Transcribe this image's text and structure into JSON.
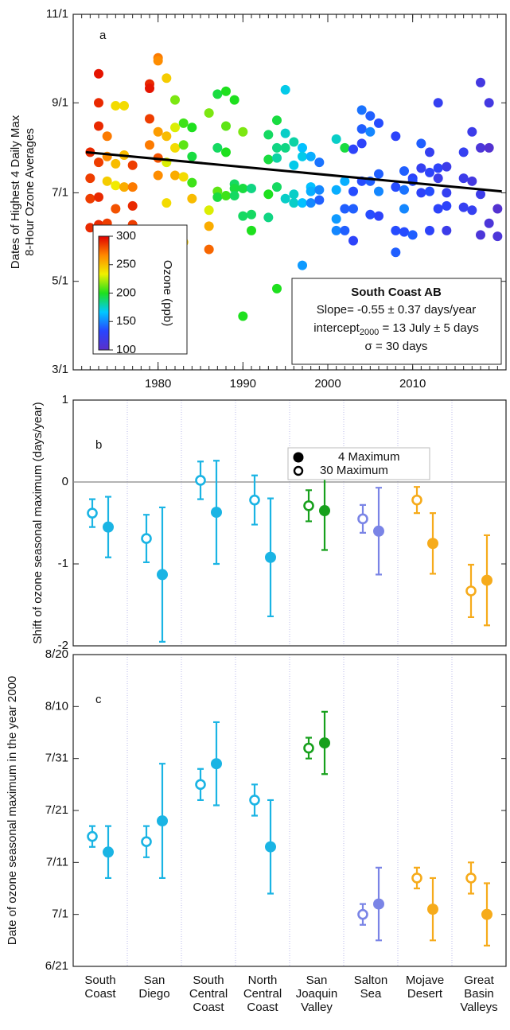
{
  "chart_data": [
    {
      "type": "scatter",
      "label": "a",
      "ylabel": [
        "Dates of Highest 4 Daily Max",
        "8-Hour Ozone Averages"
      ],
      "xlim": [
        1970,
        2021
      ],
      "xticks": [
        1980,
        1990,
        2000,
        2010
      ],
      "ylim": [
        60,
        305
      ],
      "yticks": [
        {
          "value": 60,
          "label": "3/1"
        },
        {
          "value": 121,
          "label": "5/1"
        },
        {
          "value": 182,
          "label": "7/1"
        },
        {
          "value": 244,
          "label": "9/1"
        },
        {
          "value": 305,
          "label": "11/1"
        }
      ],
      "x": [
        1972,
        1972,
        1972,
        1972,
        1973,
        1973,
        1973,
        1973,
        1973,
        1973,
        1974,
        1974,
        1974,
        1974,
        1975,
        1975,
        1975,
        1975,
        1976,
        1976,
        1976,
        1976,
        1977,
        1977,
        1977,
        1977,
        1979,
        1979,
        1979,
        1979,
        1980,
        1980,
        1980,
        1980,
        1980,
        1981,
        1981,
        1981,
        1981,
        1982,
        1982,
        1982,
        1982,
        1983,
        1983,
        1983,
        1983,
        1984,
        1984,
        1984,
        1984,
        1986,
        1986,
        1986,
        1986,
        1987,
        1987,
        1987,
        1987,
        1988,
        1988,
        1988,
        1988,
        1989,
        1989,
        1989,
        1989,
        1990,
        1990,
        1990,
        1990,
        1991,
        1991,
        1991,
        1993,
        1993,
        1993,
        1993,
        1994,
        1994,
        1994,
        1994,
        1994,
        1995,
        1995,
        1995,
        1995,
        1996,
        1996,
        1996,
        1996,
        1997,
        1997,
        1997,
        1997,
        1998,
        1998,
        1998,
        1998,
        1999,
        1999,
        1999,
        2001,
        2001,
        2001,
        2001,
        2002,
        2002,
        2002,
        2002,
        2003,
        2003,
        2003,
        2003,
        2004,
        2004,
        2004,
        2004,
        2005,
        2005,
        2005,
        2005,
        2006,
        2006,
        2006,
        2006,
        2008,
        2008,
        2008,
        2008,
        2009,
        2009,
        2009,
        2009,
        2010,
        2010,
        2010,
        2011,
        2011,
        2011,
        2012,
        2012,
        2012,
        2012,
        2013,
        2013,
        2013,
        2013,
        2014,
        2014,
        2014,
        2014,
        2016,
        2016,
        2016,
        2017,
        2017,
        2017,
        2018,
        2018,
        2018,
        2018,
        2019,
        2019,
        2019,
        2020,
        2020
      ],
      "values": [
        210,
        192,
        178,
        158,
        264,
        244,
        228,
        203,
        179,
        160,
        221,
        207,
        190,
        161,
        242,
        202,
        187,
        171,
        242,
        208,
        186,
        155,
        201,
        186,
        173,
        160,
        257,
        254,
        233,
        215,
        275,
        273,
        224,
        206,
        194,
        261,
        221,
        203,
        175,
        246,
        227,
        213,
        194,
        230,
        215,
        193,
        148,
        227,
        207,
        189,
        178,
        237,
        170,
        159,
        143,
        250,
        213,
        183,
        179,
        252,
        228,
        210,
        180,
        246,
        188,
        185,
        180,
        224,
        185,
        166,
        97,
        185,
        167,
        156,
        222,
        205,
        181,
        165,
        232,
        213,
        206,
        186,
        116,
        253,
        223,
        213,
        178,
        217,
        201,
        181,
        175,
        213,
        207,
        175,
        132,
        207,
        186,
        183,
        175,
        203,
        184,
        177,
        219,
        184,
        164,
        156,
        213,
        190,
        171,
        156,
        212,
        183,
        171,
        149,
        239,
        226,
        216,
        190,
        235,
        224,
        190,
        167,
        230,
        195,
        183,
        166,
        221,
        186,
        156,
        141,
        197,
        184,
        171,
        155,
        192,
        190,
        153,
        216,
        199,
        182,
        210,
        196,
        183,
        156,
        244,
        199,
        192,
        171,
        200,
        182,
        173,
        156,
        210,
        192,
        172,
        224,
        190,
        170,
        258,
        213,
        181,
        153,
        244,
        213,
        161,
        171,
        152
      ],
      "ozone": [
        290,
        285,
        285,
        290,
        295,
        290,
        290,
        285,
        290,
        290,
        270,
        265,
        245,
        285,
        240,
        250,
        235,
        280,
        240,
        250,
        255,
        265,
        285,
        270,
        290,
        285,
        290,
        295,
        285,
        270,
        270,
        265,
        260,
        280,
        265,
        245,
        250,
        230,
        240,
        215,
        230,
        240,
        255,
        205,
        210,
        240,
        245,
        200,
        195,
        205,
        250,
        215,
        230,
        255,
        275,
        195,
        190,
        210,
        195,
        200,
        210,
        200,
        205,
        200,
        190,
        195,
        190,
        215,
        195,
        190,
        200,
        185,
        190,
        200,
        190,
        195,
        200,
        185,
        195,
        185,
        180,
        190,
        200,
        170,
        175,
        185,
        175,
        180,
        170,
        175,
        175,
        165,
        170,
        165,
        155,
        160,
        165,
        160,
        150,
        145,
        150,
        140,
        175,
        160,
        155,
        150,
        195,
        160,
        140,
        140,
        130,
        135,
        140,
        130,
        145,
        140,
        130,
        135,
        140,
        150,
        140,
        135,
        135,
        140,
        150,
        130,
        130,
        135,
        135,
        140,
        140,
        145,
        150,
        135,
        130,
        135,
        140,
        140,
        125,
        130,
        125,
        130,
        135,
        130,
        125,
        130,
        120,
        130,
        120,
        125,
        130,
        120,
        125,
        120,
        125,
        120,
        115,
        125,
        115,
        110,
        120,
        110,
        115,
        105,
        110,
        105,
        110
      ],
      "trend_line": {
        "x": [
          1971.5,
          2020.5
        ],
        "values": [
          210,
          183
        ],
        "color": "#000000"
      },
      "colormap": [
        "#5b2fc8",
        "#2845ff",
        "#00c8ff",
        "#1ee01e",
        "#f0f000",
        "#ff8800",
        "#e00000"
      ],
      "colorbar": {
        "label": "Ozone (ppb)",
        "clim": [
          100,
          300
        ],
        "ticks": [
          100,
          150,
          200,
          250,
          300
        ]
      },
      "annotation": {
        "title": "South Coast AB",
        "slope": "Slope= -0.55 ± 0.37 days/year",
        "intercept": [
          "intercept",
          "2000",
          " = 13 July ± 5 days"
        ],
        "sigma": "σ = 30 days"
      }
    },
    {
      "type": "errorbar",
      "label": "b",
      "ylabel": "Shift of ozone seasonal maximum (days/year)",
      "ylim": [
        -2,
        1
      ],
      "yticks": [
        -2,
        -1,
        0,
        1
      ],
      "zero_line": true,
      "colors": [
        "#1ab4e4",
        "#1ab4e4",
        "#1ab4e4",
        "#1ab4e4",
        "#17a01c",
        "#7a84e6",
        "#f6ab1b",
        "#f6ab1b"
      ],
      "series": [
        {
          "name": "4 Maximum",
          "marker": "filled",
          "values": [
            -0.55,
            -1.13,
            -0.37,
            -0.92,
            -0.35,
            -0.6,
            -0.75,
            -1.2
          ],
          "errors": [
            0.37,
            0.82,
            0.63,
            0.72,
            0.48,
            0.53,
            0.37,
            0.55
          ]
        },
        {
          "name": "30 Maximum",
          "marker": "open",
          "values": [
            -0.38,
            -0.69,
            0.02,
            -0.22,
            -0.29,
            -0.45,
            -0.22,
            -1.33
          ],
          "errors": [
            0.17,
            0.29,
            0.23,
            0.3,
            0.19,
            0.17,
            0.16,
            0.32
          ]
        }
      ]
    },
    {
      "type": "errorbar",
      "label": "c",
      "ylabel": "Date of ozone seasonal maximum in the year 2000",
      "categories": [
        "South Coast",
        "San Diego",
        "South Central Coast",
        "North Central Coast",
        "San Joaquin Valley",
        "Salton Sea",
        "Mojave Desert",
        "Great Basin Valleys"
      ],
      "ylim": [
        172,
        232
      ],
      "yticks": [
        {
          "value": 172,
          "label": "6/21"
        },
        {
          "value": 182,
          "label": "7/1"
        },
        {
          "value": 192,
          "label": "7/11"
        },
        {
          "value": 202,
          "label": "7/21"
        },
        {
          "value": 212,
          "label": "7/31"
        },
        {
          "value": 222,
          "label": "8/10"
        },
        {
          "value": 232,
          "label": "8/20"
        }
      ],
      "colors": [
        "#1ab4e4",
        "#1ab4e4",
        "#1ab4e4",
        "#1ab4e4",
        "#17a01c",
        "#7a84e6",
        "#f6ab1b",
        "#f6ab1b"
      ],
      "series": [
        {
          "name": "4 Maximum",
          "marker": "filled",
          "values": [
            194,
            200,
            211,
            195,
            215,
            184,
            183,
            182
          ],
          "errors": [
            5,
            11,
            8,
            9,
            6,
            7,
            6,
            6
          ]
        },
        {
          "name": "30 Maximum",
          "marker": "open",
          "values": [
            197,
            196,
            207,
            204,
            214,
            182,
            189,
            189
          ],
          "errors": [
            2,
            3,
            3,
            3,
            2,
            2,
            2,
            3
          ]
        }
      ]
    }
  ]
}
